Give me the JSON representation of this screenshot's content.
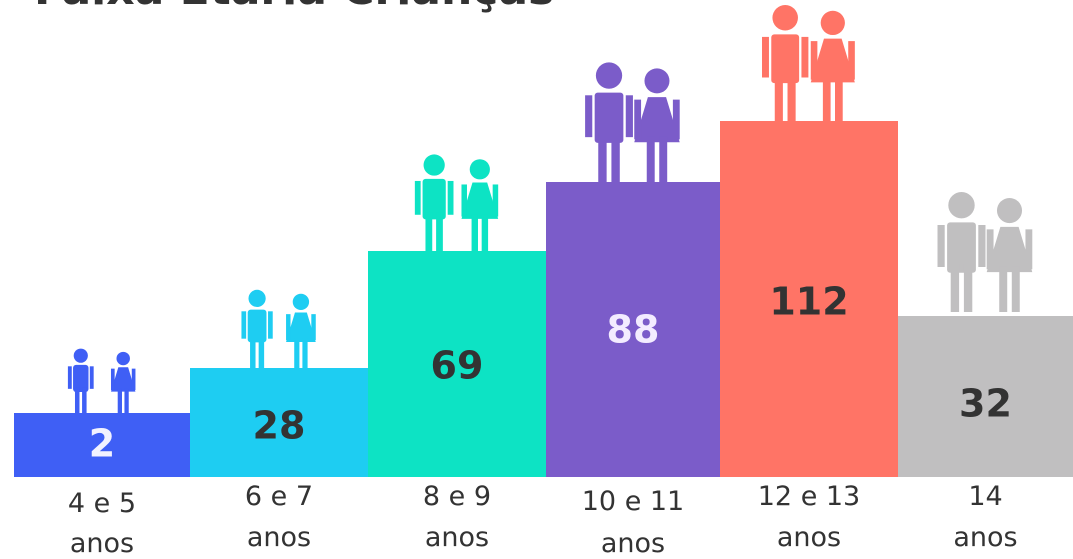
{
  "title": "Faixa Etária Crianças",
  "groups": [
    {
      "label": [
        "4 e 5",
        "anos"
      ],
      "value": "2"
    },
    {
      "label": [
        "6 e 7",
        "anos"
      ],
      "value": "28"
    },
    {
      "label": [
        "8 e 9",
        "anos"
      ],
      "value": "69"
    },
    {
      "label": [
        "10 e 11",
        "anos"
      ],
      "value": "88"
    },
    {
      "label": [
        "12 e 13",
        "anos"
      ],
      "value": "112"
    },
    {
      "label": [
        "14",
        "anos"
      ],
      "value": "32"
    }
  ]
}
